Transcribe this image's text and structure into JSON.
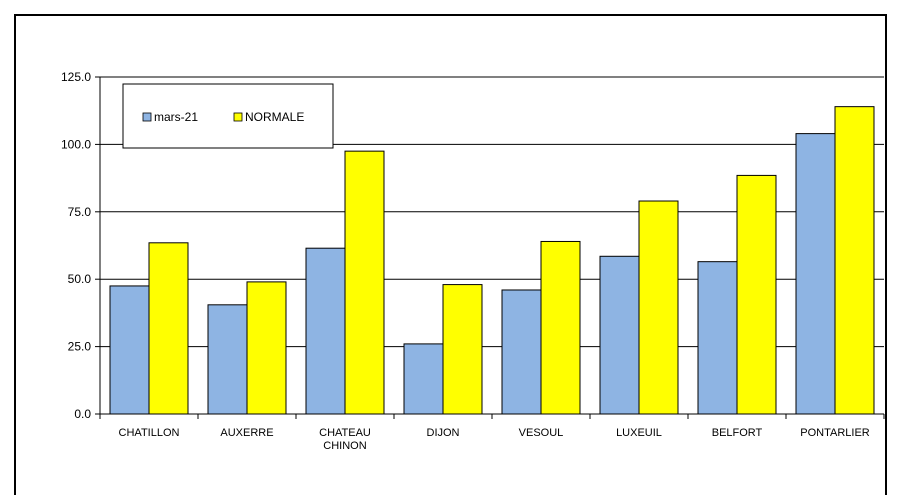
{
  "chart_data": {
    "type": "bar",
    "categories": [
      [
        "CHATILLON"
      ],
      [
        "AUXERRE"
      ],
      [
        "CHATEAU",
        "CHINON"
      ],
      [
        "DIJON"
      ],
      [
        "VESOUL"
      ],
      [
        "LUXEUIL"
      ],
      [
        "BELFORT"
      ],
      [
        "PONTARLIER"
      ]
    ],
    "series": [
      {
        "name": "mars-21",
        "color": "#8EB4E3",
        "values": [
          47.5,
          40.5,
          61.5,
          26,
          46,
          58.5,
          56.5,
          104
        ]
      },
      {
        "name": "NORMALE",
        "color": "#FFFF00",
        "values": [
          63.5,
          49,
          97.5,
          48,
          64,
          79,
          88.5,
          114
        ]
      }
    ],
    "yticks": [
      "0.0",
      "25.0",
      "50.0",
      "75.0",
      "100.0",
      "125.0"
    ],
    "ylim": [
      0,
      125
    ],
    "grid": true,
    "legend": "top-left"
  }
}
